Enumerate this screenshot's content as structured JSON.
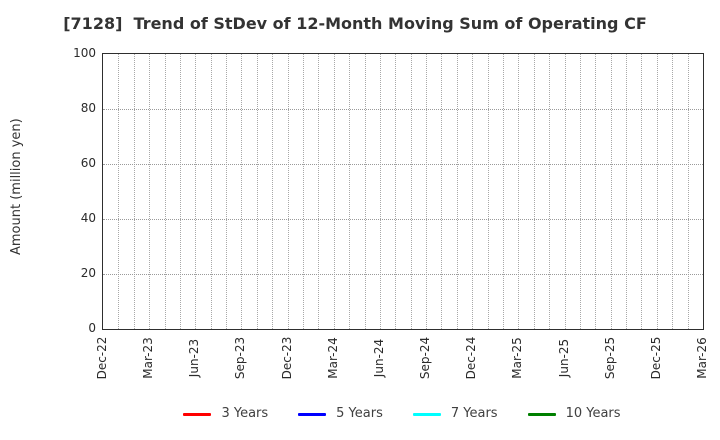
{
  "title": "[7128]  Trend of StDev of 12-Month Moving Sum of Operating CF",
  "chart_data": {
    "type": "line",
    "title": "[7128]  Trend of StDev of 12-Month Moving Sum of Operating CF",
    "xlabel": "",
    "ylabel": "Amount (million yen)",
    "ylim": [
      0,
      100
    ],
    "yticks": [
      0,
      20,
      40,
      60,
      80,
      100
    ],
    "x_tick_labels": [
      "Dec-22",
      "Mar-23",
      "Jun-23",
      "Sep-23",
      "Dec-23",
      "Mar-24",
      "Jun-24",
      "Sep-24",
      "Dec-24",
      "Mar-25",
      "Jun-25",
      "Sep-25",
      "Dec-25",
      "Mar-26"
    ],
    "months_per_labeled_tick": 3,
    "total_month_intervals": 39,
    "grid": true,
    "grid_style": "dotted",
    "legend_position": "bottom",
    "series": [
      {
        "name": "3 Years",
        "color": "#ff0000",
        "values": []
      },
      {
        "name": "5 Years",
        "color": "#0000ff",
        "values": []
      },
      {
        "name": "7 Years",
        "color": "#00ffff",
        "values": []
      },
      {
        "name": "10 Years",
        "color": "#008000",
        "values": []
      }
    ]
  },
  "colors": {
    "frame": "#2e2e2e",
    "grid": "#a8a8a8",
    "text": "#333333",
    "background": "#ffffff"
  }
}
